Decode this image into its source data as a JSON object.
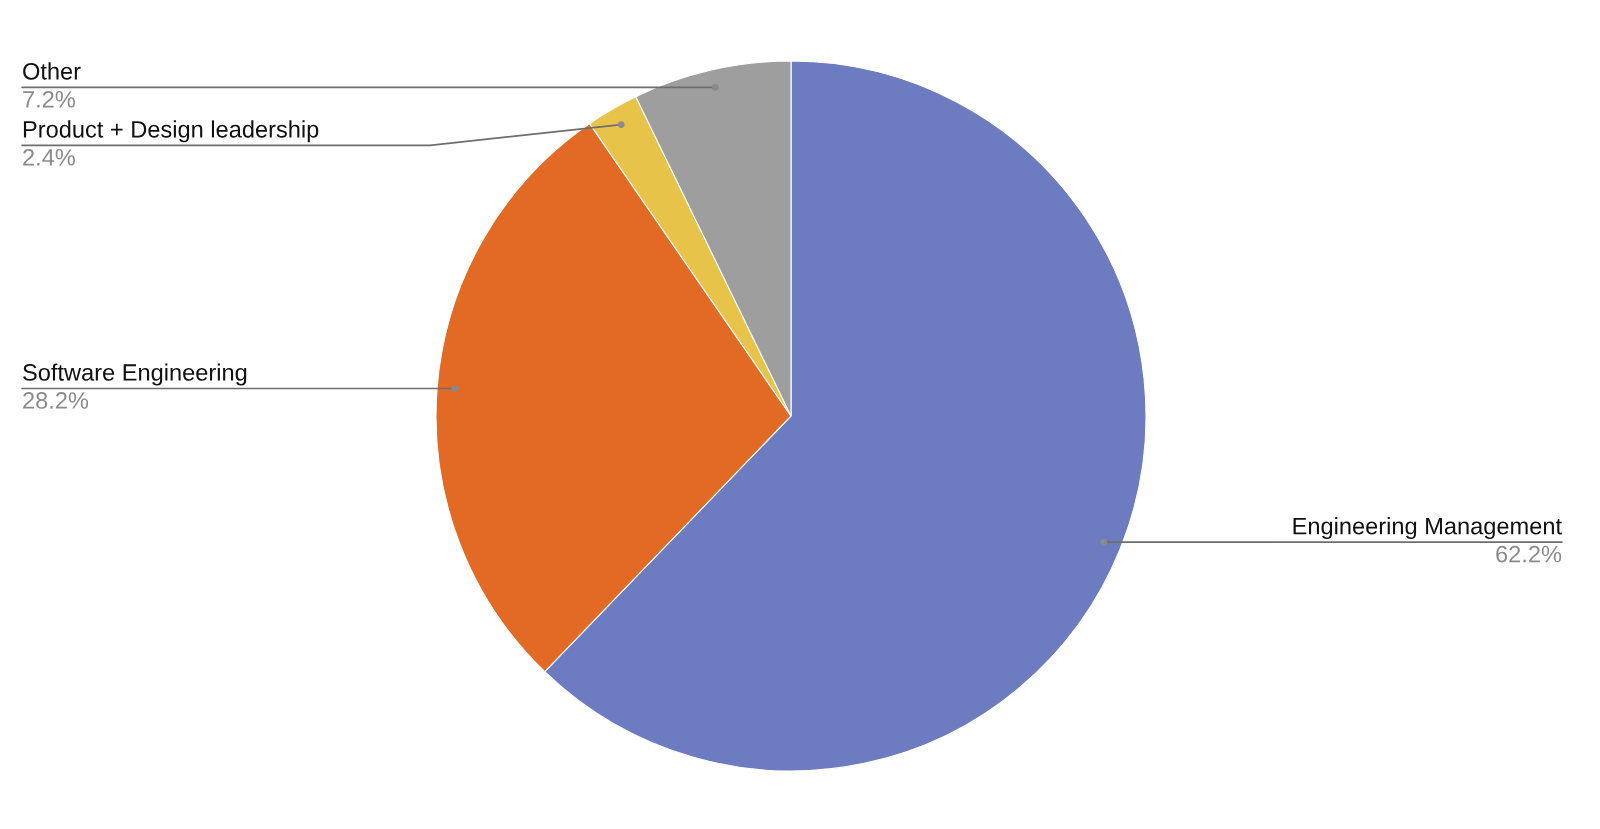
{
  "chart_data": {
    "type": "pie",
    "categories": [
      "Engineering Management",
      "Software Engineering",
      "Product + Design leadership",
      "Other"
    ],
    "values": [
      62.2,
      28.2,
      2.4,
      7.2
    ],
    "value_labels": [
      "62.2%",
      "28.2%",
      "2.4%",
      "7.2%"
    ],
    "colors": [
      "#6d7bc1",
      "#e36a24",
      "#e8c34a",
      "#9e9e9e"
    ],
    "legend": false
  }
}
